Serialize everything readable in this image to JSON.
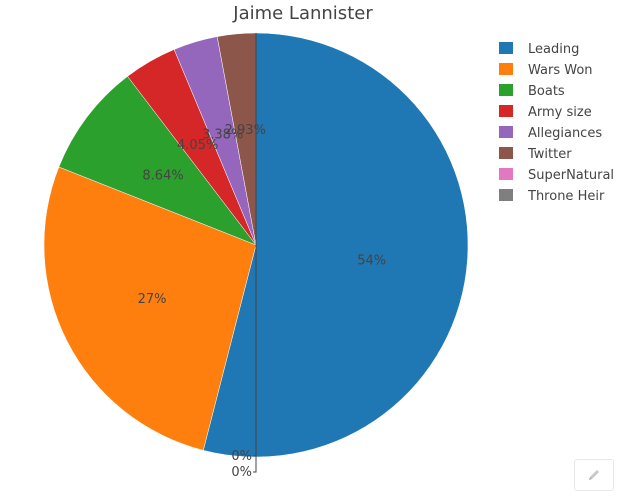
{
  "chart_data": {
    "type": "pie",
    "title": "Jaime Lannister",
    "labels": [
      "Leading",
      "Wars Won",
      "Boats",
      "Army size",
      "Allegiances",
      "Twitter",
      "SuperNatural",
      "Throne Heir"
    ],
    "values": [
      54,
      27,
      8.64,
      4.05,
      3.38,
      2.93,
      0,
      0
    ],
    "text_labels": [
      "54%",
      "27%",
      "8.64%",
      "4.05%",
      "3.38%",
      "2.93%",
      "0%",
      "0%"
    ],
    "colors": [
      "#1f77b4",
      "#ff7f0e",
      "#2ca02c",
      "#d62728",
      "#9467bd",
      "#8c564b",
      "#e377c2",
      "#7f7f7f"
    ],
    "legend_position": "top-right",
    "direction": "clockwise",
    "start_angle": "top"
  },
  "toolbar": {
    "edit_icon": "pencil-icon"
  }
}
